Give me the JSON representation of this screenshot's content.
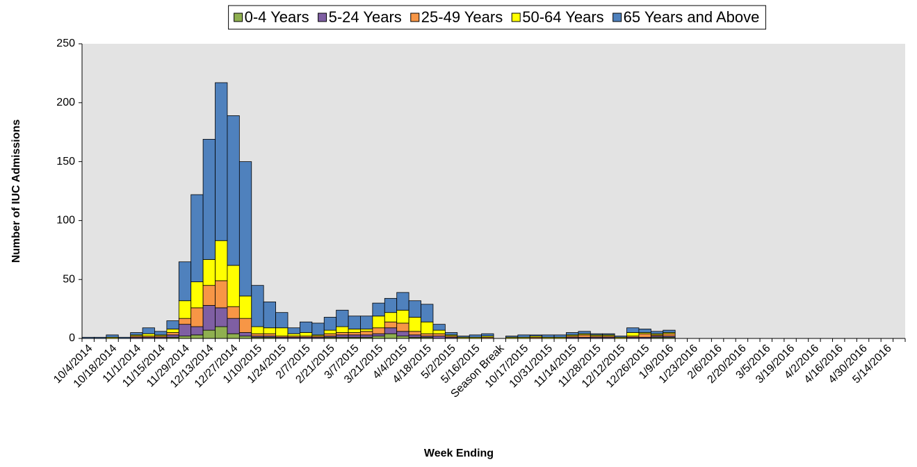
{
  "chart_data": {
    "type": "stacked-bar",
    "y_label": "Number of IUC Admissions",
    "x_label": "Week Ending",
    "categories": [
      "10/4/2014",
      null,
      "10/18/2014",
      null,
      "11/1/2014",
      null,
      "11/15/2014",
      null,
      "11/29/2014",
      null,
      "12/13/2014",
      null,
      "12/27/2014",
      null,
      "1/10/2015",
      null,
      "1/24/2015",
      null,
      "2/7/2015",
      null,
      "2/21/2015",
      null,
      "3/7/2015",
      null,
      "3/21/2015",
      null,
      "4/4/2015",
      null,
      "4/18/2015",
      null,
      "5/2/2015",
      null,
      "5/16/2015",
      null,
      "Season Break",
      null,
      "10/17/2015",
      null,
      "10/31/2015",
      null,
      "11/14/2015",
      null,
      "11/28/2015",
      null,
      "12/12/2015",
      null,
      "12/26/2015",
      null,
      "1/9/2016",
      null,
      "1/23/2016",
      null,
      "2/6/2016",
      null,
      "2/20/2016",
      null,
      "3/5/2016",
      null,
      "3/19/2016",
      null,
      "4/2/2016",
      null,
      "4/16/2016",
      null,
      "4/30/2016",
      null,
      "5/14/2016",
      null
    ],
    "series": [
      {
        "name": "0-4 Years",
        "color": "#8fb050",
        "values": [
          0,
          0,
          0,
          0,
          0,
          0,
          0,
          1,
          2,
          3,
          7,
          10,
          4,
          2,
          1,
          1,
          0,
          0,
          0,
          0,
          1,
          1,
          1,
          1,
          2,
          4,
          2,
          1,
          1,
          0,
          0,
          0,
          0,
          0,
          null,
          0,
          0,
          0,
          0,
          0,
          0,
          0,
          0,
          0,
          0,
          0,
          0,
          1,
          1,
          null,
          null,
          null,
          null,
          null,
          null,
          null,
          null,
          null,
          null,
          null,
          null,
          null,
          null,
          null,
          null,
          null,
          null,
          null
        ]
      },
      {
        "name": "5-24 Years",
        "color": "#7f5fa3",
        "values": [
          0,
          0,
          0,
          0,
          1,
          1,
          1,
          2,
          10,
          7,
          21,
          16,
          13,
          3,
          1,
          1,
          1,
          1,
          1,
          1,
          1,
          2,
          2,
          2,
          2,
          5,
          4,
          2,
          1,
          2,
          1,
          0,
          0,
          0,
          null,
          0,
          0,
          0,
          0,
          0,
          1,
          1,
          1,
          1,
          0,
          1,
          1,
          1,
          1,
          null,
          null,
          null,
          null,
          null,
          null,
          null,
          null,
          null,
          null,
          null,
          null,
          null,
          null,
          null,
          null,
          null,
          null,
          null
        ]
      },
      {
        "name": "25-49 Years",
        "color": "#f79646",
        "values": [
          0,
          0,
          0,
          0,
          1,
          1,
          1,
          2,
          5,
          16,
          17,
          23,
          10,
          12,
          2,
          2,
          1,
          1,
          1,
          1,
          2,
          2,
          2,
          3,
          5,
          5,
          7,
          3,
          2,
          2,
          1,
          0,
          0,
          1,
          null,
          0,
          0,
          1,
          0,
          0,
          1,
          2,
          1,
          1,
          0,
          1,
          3,
          1,
          2,
          null,
          null,
          null,
          null,
          null,
          null,
          null,
          null,
          null,
          null,
          null,
          null,
          null,
          null,
          null,
          null,
          null,
          null,
          null
        ]
      },
      {
        "name": "50-64 Years",
        "color": "#ffff00",
        "values": [
          0,
          0,
          1,
          0,
          1,
          2,
          1,
          3,
          15,
          22,
          22,
          34,
          35,
          19,
          6,
          5,
          7,
          2,
          3,
          1,
          3,
          5,
          3,
          2,
          10,
          8,
          11,
          12,
          10,
          3,
          1,
          1,
          1,
          1,
          null,
          1,
          1,
          1,
          1,
          1,
          1,
          1,
          1,
          1,
          1,
          3,
          1,
          1,
          1,
          null,
          null,
          null,
          null,
          null,
          null,
          null,
          null,
          null,
          null,
          null,
          null,
          null,
          null,
          null,
          null,
          null,
          null,
          null
        ]
      },
      {
        "name": "65 Years and Above",
        "color": "#4f81bd",
        "values": [
          1,
          1,
          2,
          1,
          2,
          5,
          3,
          7,
          33,
          74,
          102,
          134,
          127,
          114,
          35,
          22,
          13,
          5,
          9,
          10,
          11,
          14,
          11,
          11,
          11,
          12,
          15,
          14,
          15,
          5,
          2,
          1,
          2,
          2,
          null,
          1,
          2,
          1,
          2,
          2,
          2,
          2,
          1,
          1,
          1,
          4,
          3,
          2,
          2,
          null,
          null,
          null,
          null,
          null,
          null,
          null,
          null,
          null,
          null,
          null,
          null,
          null,
          null,
          null,
          null,
          null,
          null,
          null
        ]
      }
    ],
    "ylim": [
      0,
      250
    ],
    "yticks": [
      0,
      50,
      100,
      150,
      200,
      250
    ],
    "plot_background": "#e3e3e3"
  }
}
